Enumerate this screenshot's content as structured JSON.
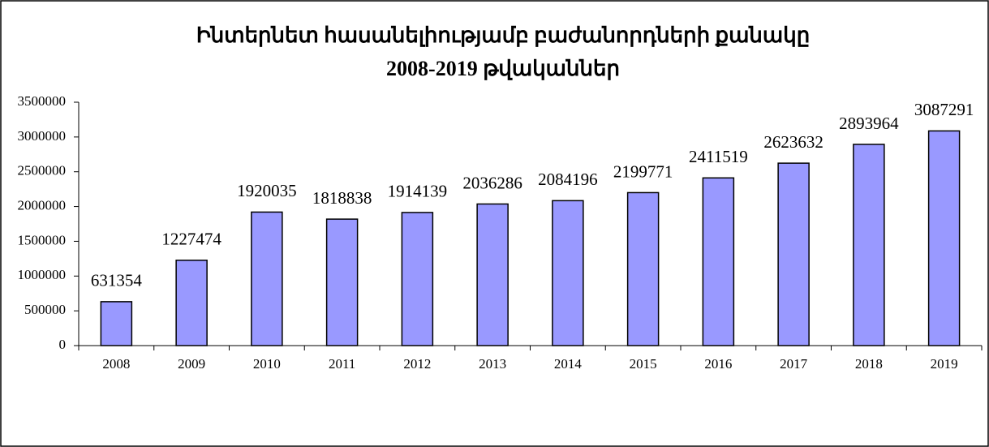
{
  "chart_data": {
    "type": "bar",
    "title": [
      "Ինտերնետ հասանելիությամբ բաժանորդների քանակը",
      "2008-2019 թվականներ"
    ],
    "categories": [
      "2008",
      "2009",
      "2010",
      "2011",
      "2012",
      "2013",
      "2014",
      "2015",
      "2016",
      "2017",
      "2018",
      "2019"
    ],
    "values": [
      631354,
      1227474,
      1920035,
      1818838,
      1914139,
      2036286,
      2084196,
      2199771,
      2411519,
      2623632,
      2893964,
      3087291
    ],
    "color": "#9999ff",
    "ylim": [
      0,
      3500000
    ],
    "yticks": [
      0,
      500000,
      1000000,
      1500000,
      2000000,
      2500000,
      3000000,
      3500000
    ],
    "grid": false
  }
}
